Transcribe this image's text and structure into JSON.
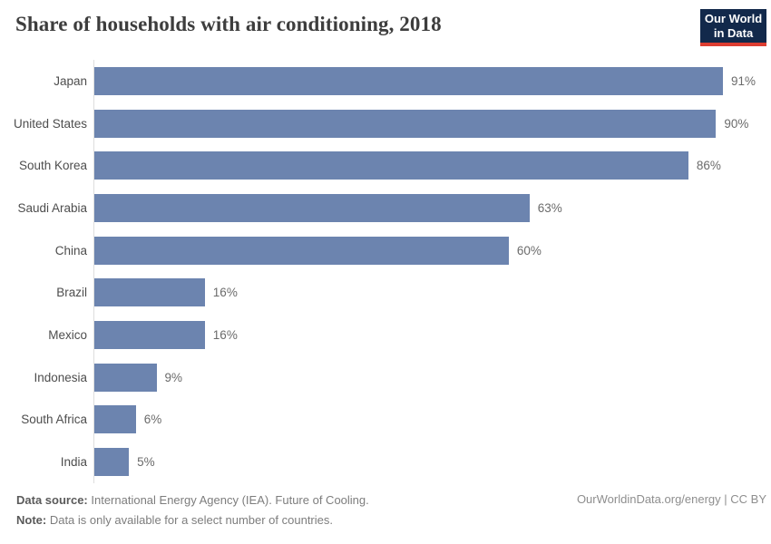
{
  "header": {
    "title": "Share of households with air conditioning, 2018",
    "logo": {
      "line1": "Our World",
      "line2": "in Data"
    }
  },
  "chart_data": {
    "type": "bar",
    "orientation": "horizontal",
    "title": "Share of households with air conditioning, 2018",
    "categories": [
      "Japan",
      "United States",
      "South Korea",
      "Saudi Arabia",
      "China",
      "Brazil",
      "Mexico",
      "Indonesia",
      "South Africa",
      "India"
    ],
    "values": [
      91,
      90,
      86,
      63,
      60,
      16,
      16,
      9,
      6,
      5
    ],
    "value_labels": [
      "91%",
      "90%",
      "86%",
      "63%",
      "60%",
      "16%",
      "16%",
      "9%",
      "6%",
      "5%"
    ],
    "unit": "%",
    "xlim": [
      0,
      100
    ],
    "grid": false,
    "legend": "none",
    "bar_color": "#6c84af",
    "axis_line_color": "#dedede"
  },
  "footer": {
    "datasource_label": "Data source:",
    "datasource_text": " International Energy Agency (IEA). Future of Cooling.",
    "note_label": "Note:",
    "note_text": " Data is only available for a select number of countries.",
    "credit": "OurWorldinData.org/energy | CC BY"
  },
  "colors": {
    "bar": "#6c84af",
    "logo_navy": "#12294b",
    "logo_red": "#dc3d31",
    "title_text": "#3d3d3d"
  }
}
